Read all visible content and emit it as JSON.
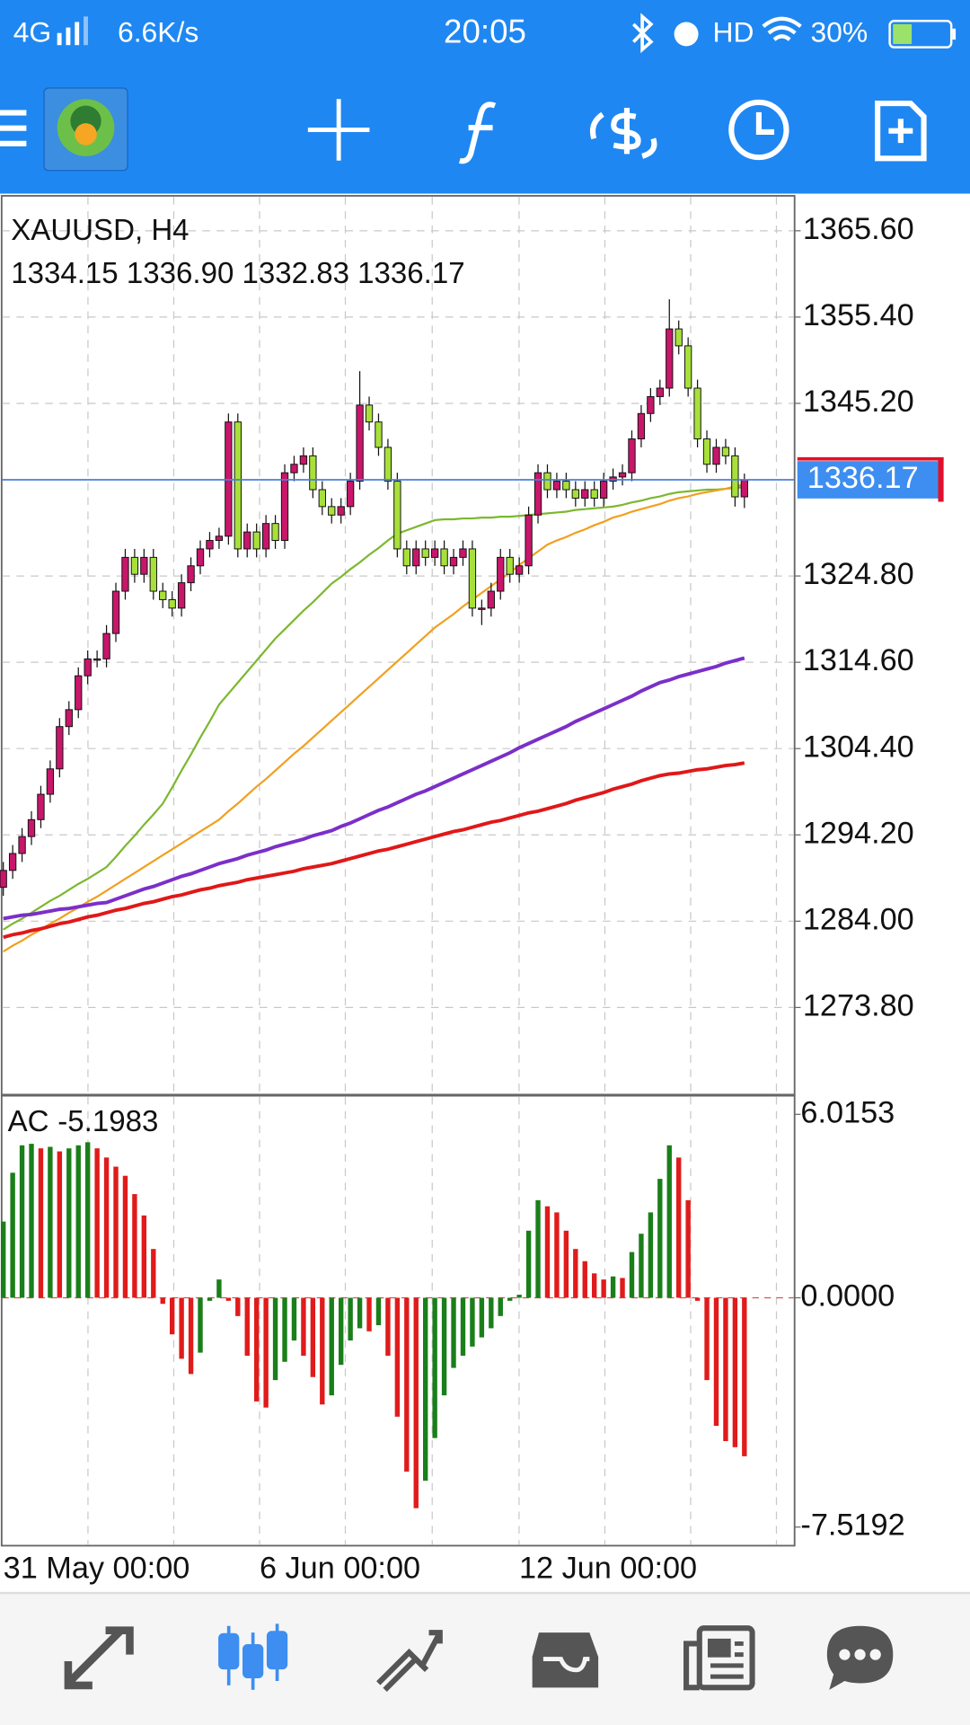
{
  "status_bar": {
    "network": "4G",
    "speed": "6.6K/s",
    "time": "20:05",
    "hd": "HD",
    "battery": "30%"
  },
  "x_labels": [
    "31 May 00:00",
    "6 Jun 00:00",
    "12 Jun 00:00"
  ],
  "chart_data": [
    {
      "type": "candlestick",
      "title": "XAUUSD, H4",
      "subtitle": "1334.15 1336.90 1332.83 1336.17",
      "ylim": [
        1263.5,
        1369.6
      ],
      "yticks": [
        {
          "value": 1365.6,
          "label": "1365.60"
        },
        {
          "value": 1355.4,
          "label": "1355.40"
        },
        {
          "value": 1345.2,
          "label": "1345.20"
        },
        {
          "value": 1324.8,
          "label": "1324.80"
        },
        {
          "value": 1314.6,
          "label": "1314.60"
        },
        {
          "value": 1304.4,
          "label": "1304.40"
        },
        {
          "value": 1294.2,
          "label": "1294.20"
        },
        {
          "value": 1284,
          "label": "1284.00"
        },
        {
          "value": 1273.8,
          "label": "1273.80"
        }
      ],
      "grid": true,
      "up_color": "#c8166b",
      "down_color": "#a8e03a",
      "price_line_color": "#4a7fd8",
      "candles": {
        "open": [
          1288,
          1290,
          1292,
          1294,
          1296,
          1299,
          1302,
          1307,
          1309,
          1313,
          1315,
          1315,
          1318,
          1323,
          1327,
          1325,
          1327,
          1323,
          1322,
          1321,
          1324,
          1326,
          1328,
          1329,
          1329.5,
          1343,
          1328,
          1330,
          1328,
          1331,
          1329,
          1337,
          1338,
          1339,
          1335,
          1333,
          1332,
          1333,
          1336,
          1345,
          1343,
          1340,
          1336,
          1328,
          1326,
          1328,
          1327,
          1328,
          1326,
          1327,
          1328,
          1321,
          1321,
          1323,
          1327,
          1325,
          1326,
          1332,
          1337,
          1335,
          1336,
          1335,
          1334,
          1335,
          1334,
          1336,
          1336.5,
          1337,
          1341,
          1344,
          1346,
          1347,
          1354,
          1352,
          1347,
          1341,
          1338,
          1340,
          1339,
          1334.15
        ],
        "high": [
          1291,
          1293,
          1295,
          1297,
          1300,
          1303,
          1308,
          1310,
          1314,
          1316,
          1316,
          1319,
          1324,
          1328,
          1328,
          1328,
          1328,
          1324,
          1323,
          1325,
          1327,
          1329,
          1330,
          1330.5,
          1344,
          1344,
          1331,
          1331,
          1332,
          1332,
          1338,
          1339,
          1340,
          1340,
          1336,
          1334,
          1334,
          1337,
          1349,
          1346,
          1344,
          1341,
          1337,
          1329,
          1329,
          1329,
          1329,
          1329,
          1328,
          1329,
          1329,
          1322,
          1324,
          1328,
          1328,
          1327,
          1333,
          1338,
          1338,
          1337,
          1337,
          1336,
          1336,
          1336,
          1337,
          1337.5,
          1338,
          1342,
          1345,
          1347,
          1348,
          1357.5,
          1355,
          1353,
          1348,
          1342,
          1341,
          1341,
          1340,
          1336.9
        ],
        "low": [
          1287,
          1289,
          1291,
          1293,
          1295,
          1298,
          1301,
          1306,
          1308,
          1312,
          1314,
          1314,
          1317,
          1322,
          1324,
          1324,
          1322,
          1321,
          1320,
          1320,
          1323,
          1325,
          1327,
          1328,
          1328.5,
          1327,
          1327,
          1327,
          1327,
          1328,
          1328,
          1336,
          1337,
          1334,
          1332,
          1331,
          1331,
          1332,
          1335,
          1342,
          1339,
          1335,
          1327,
          1325,
          1325,
          1326,
          1326,
          1325,
          1325,
          1326,
          1320,
          1319,
          1320,
          1322,
          1324,
          1324,
          1325,
          1331,
          1334,
          1334,
          1334,
          1333,
          1333,
          1333,
          1333,
          1335,
          1335.5,
          1336,
          1340,
          1343,
          1345,
          1346,
          1351,
          1346,
          1340,
          1337,
          1337,
          1338,
          1333,
          1332.83
        ],
        "close": [
          1290,
          1292,
          1294,
          1296,
          1299,
          1302,
          1307,
          1309,
          1313,
          1315,
          1315,
          1318,
          1323,
          1327,
          1325,
          1327,
          1323,
          1322,
          1321,
          1324,
          1326,
          1328,
          1329,
          1329.5,
          1343,
          1328,
          1330,
          1328,
          1331,
          1329,
          1337,
          1338,
          1339,
          1335,
          1333,
          1332,
          1333,
          1336,
          1345,
          1343,
          1340,
          1336,
          1328,
          1326,
          1328,
          1327,
          1328,
          1326,
          1327,
          1328,
          1321,
          1321,
          1323,
          1327,
          1325,
          1326,
          1332,
          1337,
          1335,
          1336,
          1335,
          1334,
          1335,
          1334,
          1336,
          1336.5,
          1337,
          1341,
          1344,
          1346,
          1347,
          1354,
          1352,
          1347,
          1341,
          1338,
          1340,
          1339,
          1334.15,
          1336.17
        ]
      },
      "series": [
        {
          "color": "#7cb82f",
          "values": [
            1283.0,
            1283.7,
            1284.3,
            1285.0,
            1285.7,
            1286.4,
            1287.0,
            1287.7,
            1288.4,
            1289.0,
            1289.7,
            1290.4,
            1291.6,
            1292.9,
            1294.1,
            1295.4,
            1296.6,
            1297.9,
            1299.8,
            1301.8,
            1303.7,
            1305.7,
            1307.6,
            1309.6,
            1310.9,
            1312.2,
            1313.5,
            1314.8,
            1316.1,
            1317.4,
            1318.5,
            1319.6,
            1320.7,
            1321.7,
            1322.8,
            1323.9,
            1324.7,
            1325.6,
            1326.4,
            1327.3,
            1328.1,
            1329.0,
            1329.8,
            1330.2,
            1330.6,
            1331.0,
            1331.4,
            1331.5,
            1331.5,
            1331.6,
            1331.6,
            1331.7,
            1331.7,
            1331.8,
            1331.8,
            1331.9,
            1332.0,
            1332.1,
            1332.2,
            1332.3,
            1332.4,
            1332.6,
            1332.7,
            1332.8,
            1332.9,
            1333.0,
            1333.2,
            1333.5,
            1333.7,
            1334.0,
            1334.2,
            1334.5,
            1334.7,
            1334.8,
            1334.9,
            1335.0,
            1335.0,
            1335.1,
            1335.2,
            1335.3
          ]
        },
        {
          "color": "#f0a020",
          "values": [
            1280.4,
            1281.1,
            1281.7,
            1282.4,
            1283.0,
            1283.7,
            1284.3,
            1285.0,
            1285.6,
            1286.3,
            1286.9,
            1287.6,
            1288.3,
            1289.0,
            1289.7,
            1290.4,
            1291.1,
            1291.8,
            1292.5,
            1293.2,
            1293.9,
            1294.6,
            1295.3,
            1296.0,
            1297.0,
            1297.9,
            1298.9,
            1299.9,
            1300.8,
            1301.8,
            1302.8,
            1303.8,
            1304.7,
            1305.7,
            1306.7,
            1307.7,
            1308.7,
            1309.7,
            1310.7,
            1311.7,
            1312.7,
            1313.7,
            1314.7,
            1315.7,
            1316.7,
            1317.7,
            1318.7,
            1319.5,
            1320.3,
            1321.2,
            1322.0,
            1322.8,
            1323.6,
            1324.4,
            1325.2,
            1326.1,
            1326.9,
            1327.7,
            1328.5,
            1329.0,
            1329.4,
            1329.9,
            1330.3,
            1330.8,
            1331.2,
            1331.7,
            1332.0,
            1332.4,
            1332.7,
            1333.0,
            1333.3,
            1333.7,
            1334.0,
            1334.2,
            1334.5,
            1334.7,
            1334.9,
            1335.1,
            1335.4,
            1335.6
          ]
        },
        {
          "color": "#7b2fc9",
          "values": [
            1284.3,
            1284.5,
            1284.7,
            1284.8,
            1285.0,
            1285.2,
            1285.4,
            1285.5,
            1285.7,
            1285.9,
            1286.1,
            1286.2,
            1286.6,
            1287.0,
            1287.4,
            1287.8,
            1288.1,
            1288.5,
            1288.9,
            1289.3,
            1289.6,
            1290.0,
            1290.4,
            1290.8,
            1291.1,
            1291.4,
            1291.8,
            1292.1,
            1292.4,
            1292.8,
            1293.1,
            1293.4,
            1293.7,
            1294.1,
            1294.4,
            1294.7,
            1295.2,
            1295.6,
            1296.1,
            1296.6,
            1297.1,
            1297.5,
            1298.0,
            1298.5,
            1299.0,
            1299.4,
            1299.9,
            1300.4,
            1300.9,
            1301.4,
            1301.9,
            1302.4,
            1302.9,
            1303.4,
            1303.9,
            1304.5,
            1305.0,
            1305.5,
            1306.0,
            1306.5,
            1307.0,
            1307.6,
            1308.1,
            1308.6,
            1309.1,
            1309.6,
            1310.1,
            1310.6,
            1311.2,
            1311.7,
            1312.2,
            1312.5,
            1312.9,
            1313.2,
            1313.5,
            1313.8,
            1314.1,
            1314.5,
            1314.8,
            1315.1
          ]
        },
        {
          "color": "#e01818",
          "values": [
            1282.1,
            1282.4,
            1282.6,
            1282.9,
            1283.1,
            1283.4,
            1283.7,
            1283.9,
            1284.2,
            1284.5,
            1284.7,
            1285.0,
            1285.3,
            1285.5,
            1285.8,
            1286.1,
            1286.3,
            1286.6,
            1286.9,
            1287.1,
            1287.4,
            1287.7,
            1287.9,
            1288.2,
            1288.4,
            1288.6,
            1288.9,
            1289.1,
            1289.3,
            1289.5,
            1289.7,
            1289.9,
            1290.2,
            1290.4,
            1290.6,
            1290.8,
            1291.1,
            1291.4,
            1291.7,
            1292.0,
            1292.3,
            1292.5,
            1292.8,
            1293.1,
            1293.4,
            1293.7,
            1294.0,
            1294.3,
            1294.6,
            1294.8,
            1295.1,
            1295.4,
            1295.7,
            1295.9,
            1296.2,
            1296.5,
            1296.8,
            1297.0,
            1297.3,
            1297.6,
            1297.9,
            1298.3,
            1298.6,
            1298.9,
            1299.2,
            1299.6,
            1299.9,
            1300.2,
            1300.6,
            1300.9,
            1301.2,
            1301.4,
            1301.5,
            1301.7,
            1301.9,
            1302.0,
            1302.2,
            1302.4,
            1302.5,
            1302.7
          ]
        }
      ]
    },
    {
      "type": "bar",
      "title": "AC",
      "ylim": [
        -8.13,
        6.59
      ],
      "yticks": [
        6.0153,
        {
          "value": 0,
          "label": "0.0000"
        },
        -7.5192
      ],
      "up_color": "#1a7f1a",
      "down_color": "#e01b1b",
      "values": [
        2.5,
        4.1,
        5.0,
        5.05,
        4.9,
        4.95,
        4.8,
        4.9,
        5.0,
        5.1,
        4.9,
        4.6,
        4.3,
        4.0,
        3.4,
        2.7,
        1.6,
        -0.2,
        -1.2,
        -2.0,
        -2.5,
        -1.8,
        -0.1,
        0.6,
        -0.1,
        -0.6,
        -1.9,
        -3.4,
        -3.6,
        -2.7,
        -2.1,
        -1.4,
        -1.9,
        -2.6,
        -3.5,
        -3.2,
        -2.2,
        -1.4,
        -1.0,
        -1.1,
        -0.9,
        -1.9,
        -3.9,
        -5.7,
        -6.9,
        -6.0,
        -4.6,
        -3.2,
        -2.3,
        -1.9,
        -1.6,
        -1.3,
        -1.0,
        -0.6,
        -0.1,
        0.1,
        2.2,
        3.2,
        3.0,
        2.8,
        2.2,
        1.6,
        1.2,
        0.8,
        0.6,
        0.7,
        0.65,
        1.5,
        2.1,
        2.8,
        3.9,
        5.0,
        4.6,
        3.2,
        -0.1,
        -2.7,
        -4.2,
        -4.7,
        -4.9,
        -5.1983
      ]
    }
  ]
}
